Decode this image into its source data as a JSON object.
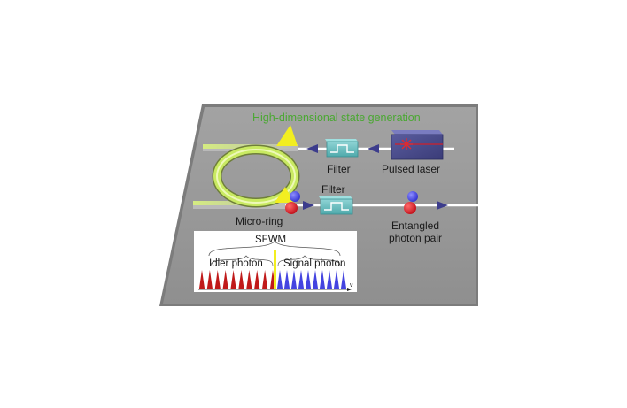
{
  "title": {
    "text": "High-dimensional state generation",
    "color": "#4aa832"
  },
  "components": {
    "pulsed_laser": {
      "label": "Pulsed laser"
    },
    "filter_top": {
      "label": "Filter"
    },
    "filter_bottom": {
      "label": "Filter"
    },
    "micro_ring": {
      "label": "Micro-ring"
    },
    "photon_pair": {
      "label": "Entangled\nphoton pair"
    }
  },
  "inset": {
    "title": "SFWM",
    "idler_label": "Idler photon",
    "signal_label": "Signal photon",
    "axis_label": "ν",
    "idler_peak_count": 10,
    "signal_peak_count": 10
  },
  "colors": {
    "board": "#9a9a9a",
    "waveguide": "#ffffff",
    "ring": "#c9ea62",
    "laser_body": "#4a4c8c",
    "laser_beam": "#d0202a",
    "filter": "#6fc1c3",
    "idler": "#c01a1a",
    "signal": "#4444e0",
    "pump": "#f2ee20",
    "arrow": "#3c3c8c"
  }
}
